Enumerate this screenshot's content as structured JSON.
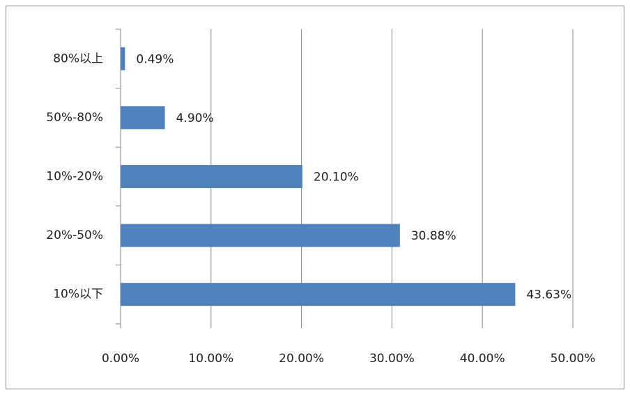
{
  "chart_data": {
    "type": "barh",
    "categories": [
      "80%以上",
      "50%-80%",
      "10%-20%",
      "20%-50%",
      "10%以下"
    ],
    "values": [
      0.49,
      4.9,
      20.1,
      30.88,
      43.63
    ],
    "value_labels": [
      "0.49%",
      "4.90%",
      "20.10%",
      "30.88%",
      "43.63%"
    ],
    "color": "#4f81bd",
    "xlim": [
      0,
      50
    ],
    "xticks": [
      {
        "value": 0,
        "label": "0.00%"
      },
      {
        "value": 10,
        "label": "10.00%"
      },
      {
        "value": 20,
        "label": "20.00%"
      },
      {
        "value": 30,
        "label": "30.00%"
      },
      {
        "value": 40,
        "label": "40.00%"
      },
      {
        "value": 50,
        "label": "50.00%"
      }
    ],
    "grid": true
  }
}
